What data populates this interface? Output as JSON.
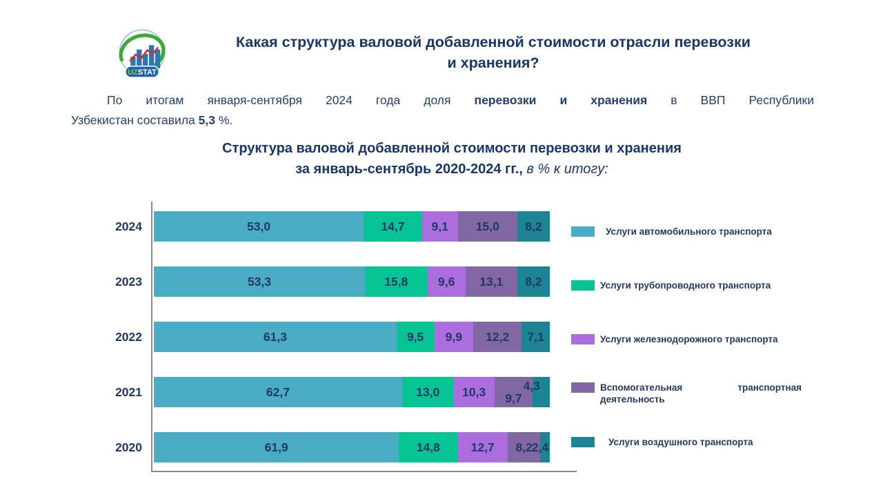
{
  "header": {
    "title": "Какая структура валовой добавленной стоимости отрасли перевозки\nи хранения?",
    "logo": {
      "text_uz": "UZ",
      "text_stat": "STAT"
    }
  },
  "intro": {
    "line1_pre": "По итогам января-сентября 2024 года доля ",
    "line1_bold": "перевозки и хранения",
    "line1_post": " в ВВП Республики",
    "line2_pre": "Узбекистан составила ",
    "line2_bold": "5,3",
    "line2_post": " %."
  },
  "chart_data": {
    "type": "bar",
    "orientation": "horizontal",
    "stacked": true,
    "title_line1": "Структура валовой добавленной стоимости перевозки и хранения",
    "title_line2_bold": "за январь-сентябрь 2020-2024 гг., ",
    "title_line2_italic": "в % к итогу:",
    "xlim": [
      0,
      100
    ],
    "unit": "percent-of-total",
    "decimal_separator": ",",
    "legend_position": "right",
    "grid": false,
    "categories": [
      "2024",
      "2023",
      "2022",
      "2021",
      "2020"
    ],
    "series": [
      {
        "name": "Услуги автомобильного транспорта",
        "color": "#4BACC6",
        "values": [
          53.0,
          53.3,
          61.3,
          62.7,
          61.9
        ]
      },
      {
        "name": "Услуги трубопроводного транспорта",
        "color": "#06C493",
        "values": [
          14.7,
          15.8,
          9.5,
          13.0,
          14.8
        ]
      },
      {
        "name": "Услуги железнодорожного транспорта",
        "color": "#AC6DDE",
        "values": [
          9.1,
          9.6,
          9.9,
          10.3,
          12.7
        ]
      },
      {
        "name": "Вспомогательная транспортная деятельность",
        "color": "#8167A3",
        "values": [
          15.0,
          13.1,
          12.2,
          9.7,
          8.2
        ]
      },
      {
        "name": "Услуги воздушного транспорта",
        "color": "#1D8496",
        "values": [
          8.2,
          8.2,
          7.1,
          4.3,
          2.4
        ]
      }
    ],
    "label_offsets": {
      "3": {
        "3": [
          0,
          9
        ],
        "4": [
          -14,
          -9
        ]
      },
      "4": {
        "4": [
          -7,
          0
        ]
      }
    }
  }
}
